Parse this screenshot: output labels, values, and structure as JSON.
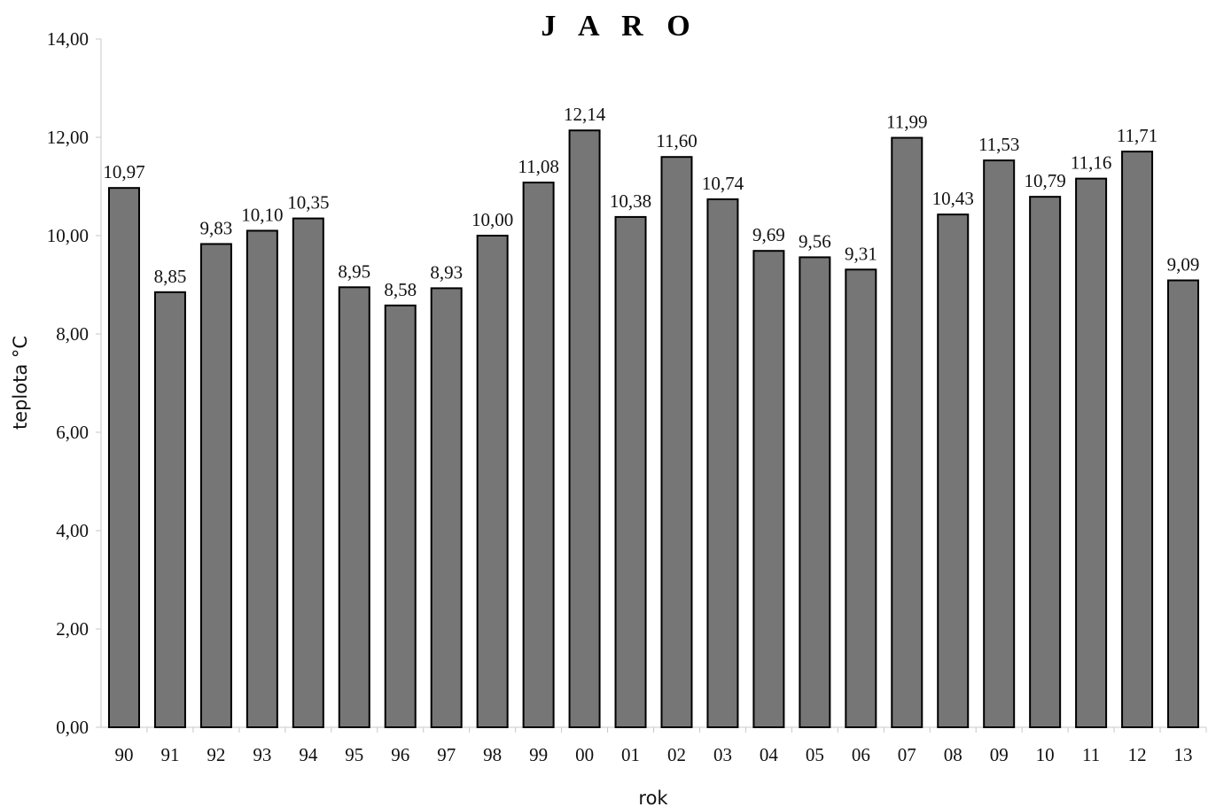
{
  "chart_data": {
    "type": "bar",
    "title": "J A R O",
    "xlabel": "rok",
    "ylabel": "teplota °C",
    "ylim": [
      0,
      14
    ],
    "yticks": [
      "0,00",
      "2,00",
      "4,00",
      "6,00",
      "8,00",
      "10,00",
      "12,00",
      "14,00"
    ],
    "ytick_values": [
      0,
      2,
      4,
      6,
      8,
      10,
      12,
      14
    ],
    "categories": [
      "90",
      "91",
      "92",
      "93",
      "94",
      "95",
      "96",
      "97",
      "98",
      "99",
      "00",
      "01",
      "02",
      "03",
      "04",
      "05",
      "06",
      "07",
      "08",
      "09",
      "10",
      "11",
      "12",
      "13"
    ],
    "values": [
      10.97,
      8.85,
      9.83,
      10.1,
      10.35,
      8.95,
      8.58,
      8.93,
      10.0,
      11.08,
      12.14,
      10.38,
      11.6,
      10.74,
      9.69,
      9.56,
      9.31,
      11.99,
      10.43,
      11.53,
      10.79,
      11.16,
      11.71,
      9.09
    ],
    "data_labels": [
      "10,97",
      "8,85",
      "9,83",
      "10,10",
      "10,35",
      "8,95",
      "8,58",
      "8,93",
      "10,00",
      "11,08",
      "12,14",
      "10,38",
      "11,60",
      "10,74",
      "9,69",
      "9,56",
      "9,31",
      "11,99",
      "10,43",
      "11,53",
      "10,79",
      "11,16",
      "11,71",
      "9,09"
    ],
    "bar_color": "#767676",
    "bar_edge_color": "#000000",
    "grid": false,
    "legend": "none"
  }
}
